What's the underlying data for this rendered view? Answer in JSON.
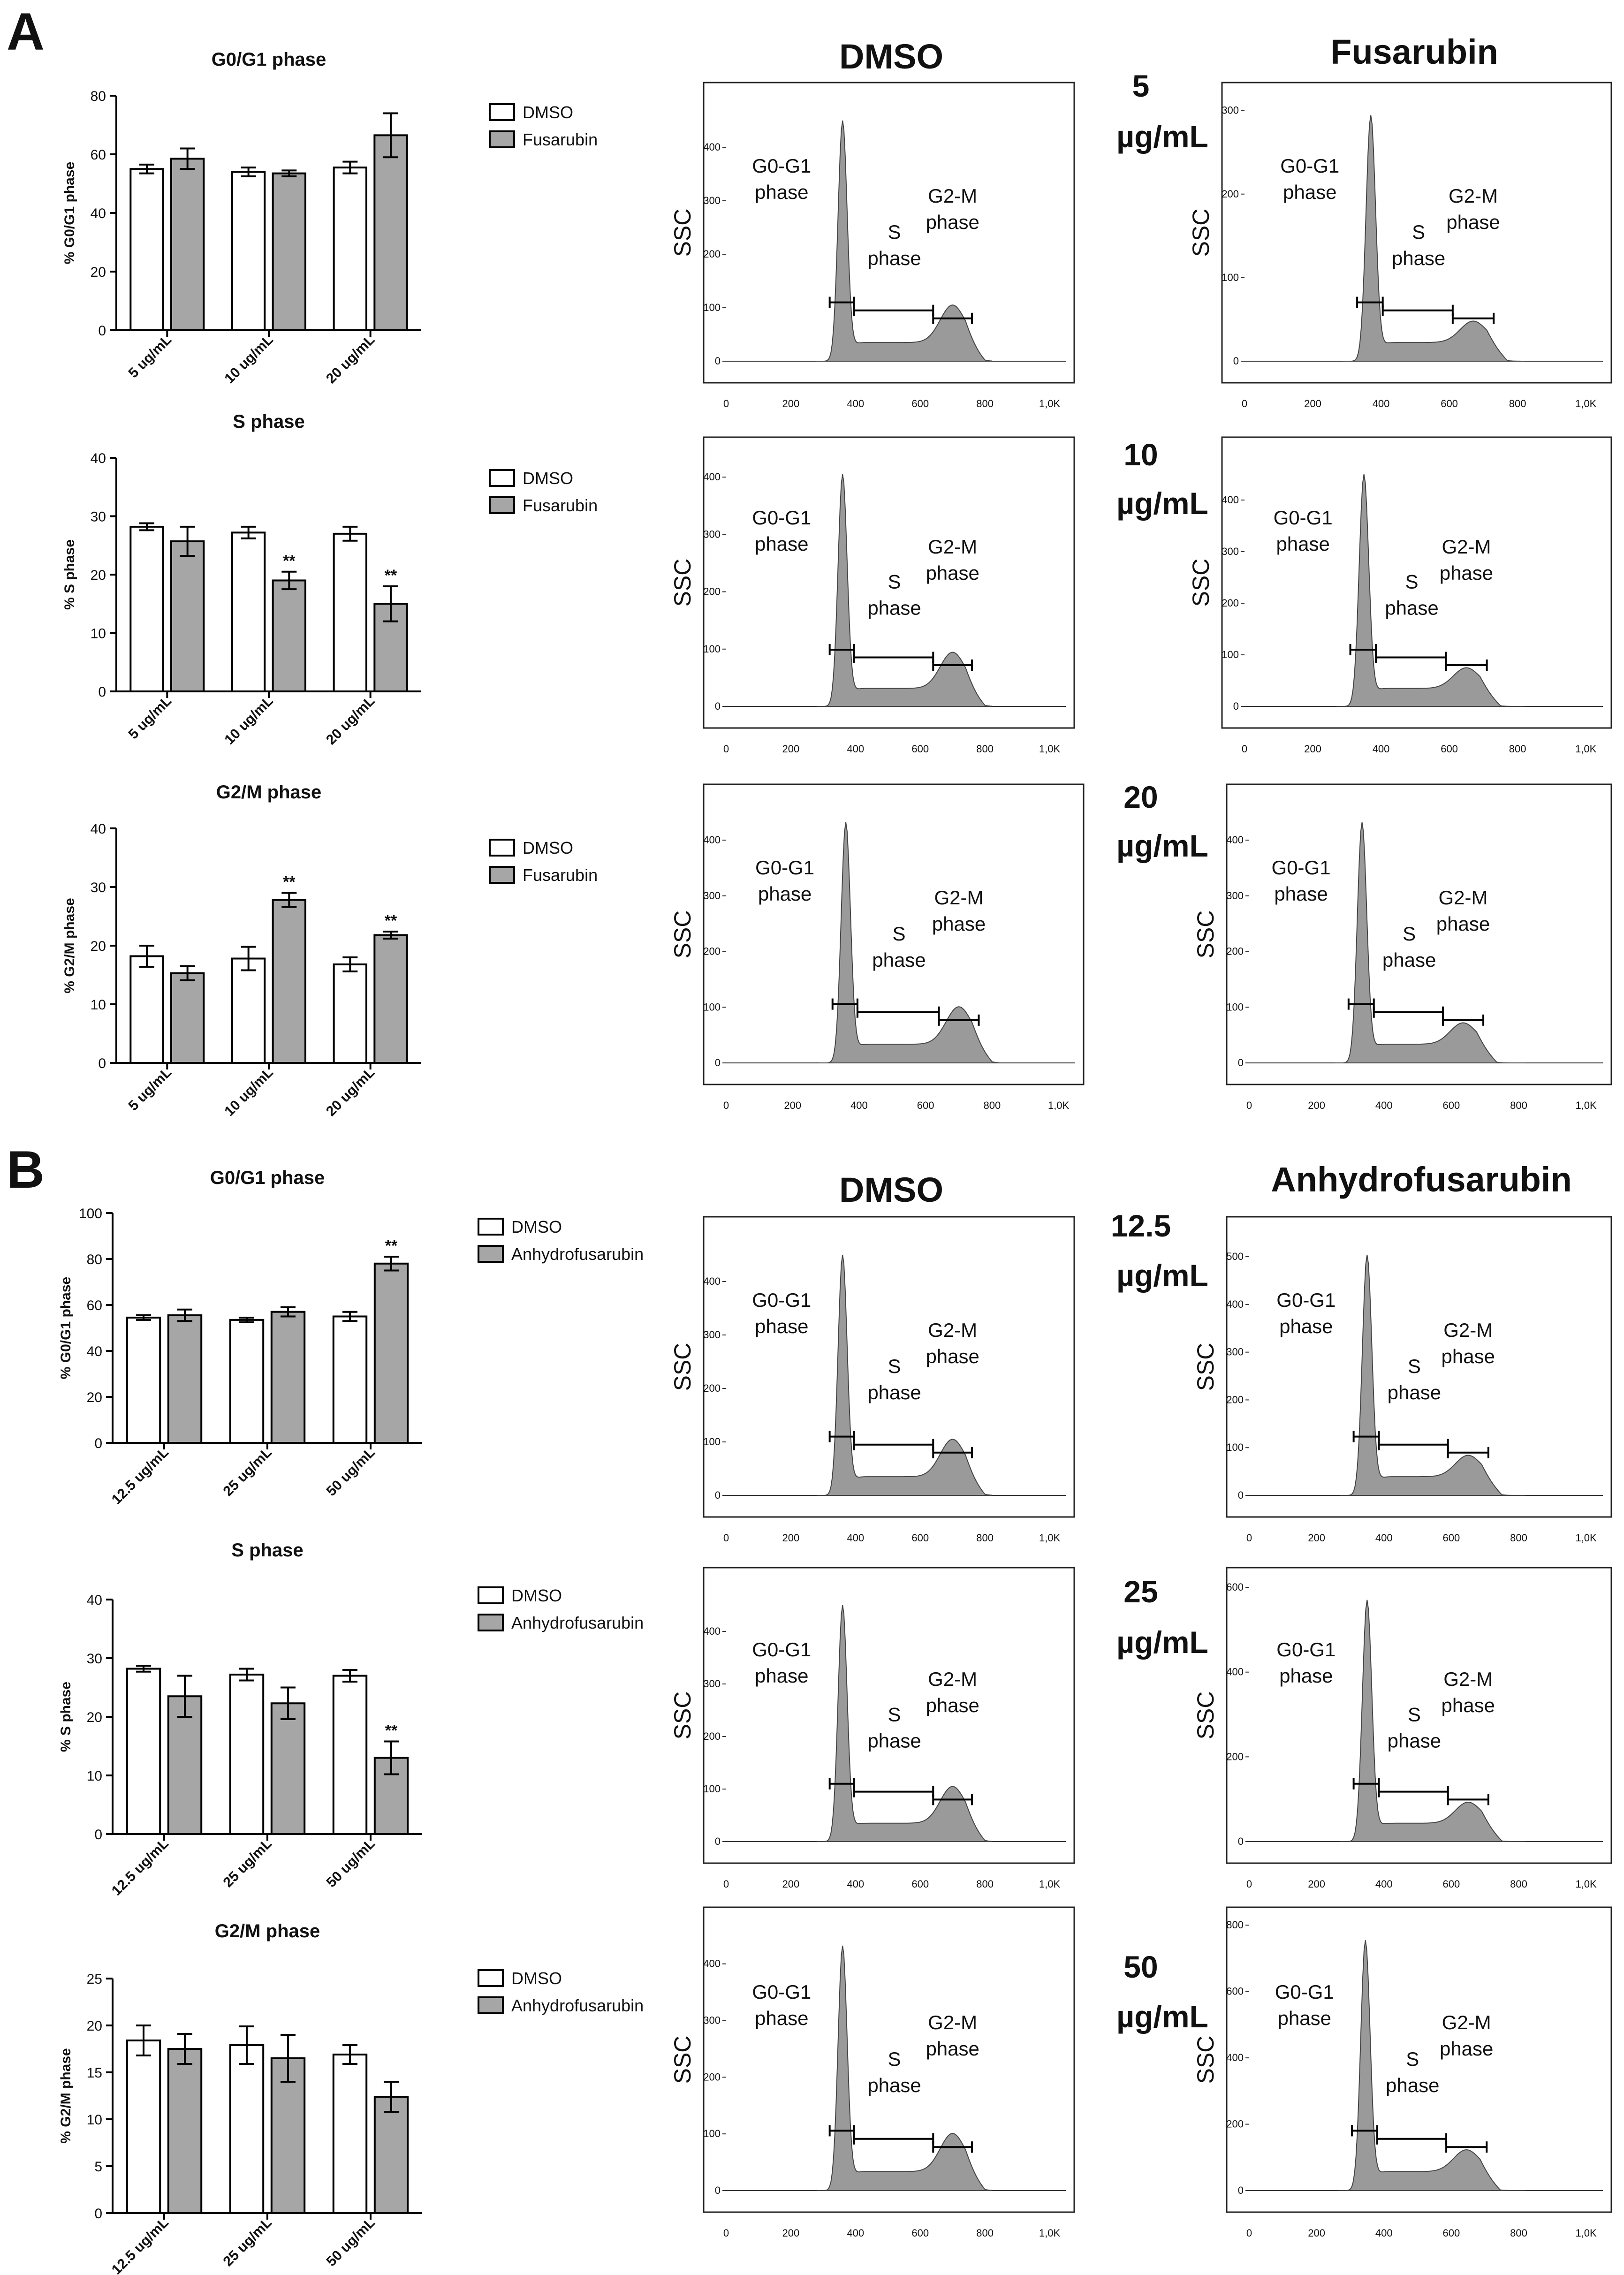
{
  "panel_labels": [
    "A",
    "B"
  ],
  "column_titles": {
    "A": {
      "control": "DMSO",
      "treatment": "Fusarubin"
    },
    "B": {
      "control": "DMSO",
      "treatment": "Anhydrofusarubin"
    }
  },
  "dose_labels": {
    "A": [
      [
        "5",
        "µg/mL"
      ],
      [
        "10",
        "µg/mL"
      ],
      [
        "20",
        "µg/mL"
      ]
    ],
    "B": [
      [
        "12.5",
        "µg/mL"
      ],
      [
        "25",
        "µg/mL"
      ],
      [
        "50",
        "µg/mL"
      ]
    ]
  },
  "histogram_annotations": {
    "y_axis_label": "SSC",
    "x_ticks": [
      "0",
      "200",
      "400",
      "600",
      "800",
      "1,0K"
    ],
    "g0g1": [
      "G0-G1",
      "phase"
    ],
    "s": [
      "S",
      "phase"
    ],
    "g2m": [
      "G2-M",
      "phase"
    ]
  },
  "chart_data": [
    {
      "type": "bar",
      "panel": "A",
      "title": "G0/G1 phase",
      "ylabel": "% G0/G1 phase",
      "ylim": [
        0,
        80
      ],
      "yticks": [
        0,
        20,
        40,
        60,
        80
      ],
      "categories": [
        "5 ug/mL",
        "10 ug/mL",
        "20 ug/mL"
      ],
      "series": [
        {
          "name": "DMSO",
          "color": "#ffffff",
          "values": [
            55,
            54,
            55.5
          ],
          "errors": [
            1.5,
            1.5,
            2
          ]
        },
        {
          "name": "Fusarubin",
          "color": "#a6a6a6",
          "values": [
            58.5,
            53.5,
            66.5
          ],
          "errors": [
            3.5,
            1,
            7.5
          ]
        }
      ],
      "significance": [
        "",
        "",
        ""
      ]
    },
    {
      "type": "bar",
      "panel": "A",
      "title": "S phase",
      "ylabel": "% S phase",
      "ylim": [
        0,
        40
      ],
      "yticks": [
        0,
        10,
        20,
        30,
        40
      ],
      "categories": [
        "5 ug/mL",
        "10 ug/mL",
        "20 ug/mL"
      ],
      "series": [
        {
          "name": "DMSO",
          "color": "#ffffff",
          "values": [
            28.2,
            27.2,
            27
          ],
          "errors": [
            0.6,
            1,
            1.2
          ]
        },
        {
          "name": "Fusarubin",
          "color": "#a6a6a6",
          "values": [
            25.7,
            19,
            15
          ],
          "errors": [
            2.5,
            1.5,
            3
          ]
        }
      ],
      "significance": [
        "",
        "**",
        "**"
      ]
    },
    {
      "type": "bar",
      "panel": "A",
      "title": "G2/M phase",
      "ylabel": "% G2/M phase",
      "ylim": [
        0,
        40
      ],
      "yticks": [
        0,
        10,
        20,
        30,
        40
      ],
      "categories": [
        "5 ug/mL",
        "10 ug/mL",
        "20 ug/mL"
      ],
      "series": [
        {
          "name": "DMSO",
          "color": "#ffffff",
          "values": [
            18.2,
            17.8,
            16.8
          ],
          "errors": [
            1.8,
            2,
            1.2
          ]
        },
        {
          "name": "Fusarubin",
          "color": "#a6a6a6",
          "values": [
            15.3,
            27.8,
            21.8
          ],
          "errors": [
            1.2,
            1.2,
            0.6
          ]
        }
      ],
      "significance": [
        "",
        "**",
        "**"
      ]
    },
    {
      "type": "bar",
      "panel": "B",
      "title": "G0/G1 phase",
      "ylabel": "% G0/G1 phase",
      "ylim": [
        0,
        100
      ],
      "yticks": [
        0,
        20,
        40,
        60,
        80,
        100
      ],
      "categories": [
        "12.5 ug/mL",
        "25 ug/mL",
        "50 ug/mL"
      ],
      "series": [
        {
          "name": "DMSO",
          "color": "#ffffff",
          "values": [
            54.5,
            53.5,
            55
          ],
          "errors": [
            1,
            1,
            2
          ]
        },
        {
          "name": "Anhydrofusarubin",
          "color": "#a6a6a6",
          "values": [
            55.5,
            57,
            78
          ],
          "errors": [
            2.5,
            2,
            3
          ]
        }
      ],
      "significance": [
        "",
        "",
        "**"
      ]
    },
    {
      "type": "bar",
      "panel": "B",
      "title": "S phase",
      "ylabel": "% S phase",
      "ylim": [
        0,
        40
      ],
      "yticks": [
        0,
        10,
        20,
        30,
        40
      ],
      "categories": [
        "12.5 ug/mL",
        "25 ug/mL",
        "50 ug/mL"
      ],
      "series": [
        {
          "name": "DMSO",
          "color": "#ffffff",
          "values": [
            28.2,
            27.2,
            27
          ],
          "errors": [
            0.5,
            1,
            1
          ]
        },
        {
          "name": "Anhydrofusarubin",
          "color": "#a6a6a6",
          "values": [
            23.5,
            22.3,
            13
          ],
          "errors": [
            3.5,
            2.7,
            2.8
          ]
        }
      ],
      "significance": [
        "",
        "",
        "**"
      ]
    },
    {
      "type": "bar",
      "panel": "B",
      "title": "G2/M phase",
      "ylabel": "% G2/M phase",
      "ylim": [
        0,
        25
      ],
      "yticks": [
        0,
        5,
        10,
        15,
        20,
        25
      ],
      "categories": [
        "12.5 ug/mL",
        "25 ug/mL",
        "50 ug/mL"
      ],
      "series": [
        {
          "name": "DMSO",
          "color": "#ffffff",
          "values": [
            18.4,
            17.9,
            16.9
          ],
          "errors": [
            1.6,
            2,
            1
          ]
        },
        {
          "name": "Anhydrofusarubin",
          "color": "#a6a6a6",
          "values": [
            17.5,
            16.5,
            12.4
          ],
          "errors": [
            1.6,
            2.5,
            1.6
          ]
        }
      ],
      "significance": [
        "",
        "",
        ""
      ]
    },
    {
      "type": "area",
      "panel": "A",
      "condition": "DMSO",
      "row": 1,
      "ymax": 500,
      "yticks": [
        0,
        100,
        200,
        300,
        400
      ],
      "peak": 360
    },
    {
      "type": "area",
      "panel": "A",
      "condition": "Fusarubin",
      "dose": "5 µg/mL",
      "row": 1,
      "ymax": 320,
      "yticks": [
        0,
        100,
        200,
        300
      ],
      "peak": 370
    },
    {
      "type": "area",
      "panel": "A",
      "condition": "DMSO",
      "row": 2,
      "ymax": 450,
      "yticks": [
        0,
        100,
        200,
        300,
        400
      ],
      "peak": 360
    },
    {
      "type": "area",
      "panel": "A",
      "condition": "Fusarubin",
      "dose": "10 µg/mL",
      "row": 2,
      "ymax": 500,
      "yticks": [
        0,
        100,
        200,
        300,
        400
      ],
      "peak": 350
    },
    {
      "type": "area",
      "panel": "A",
      "condition": "DMSO",
      "row": 3,
      "ymax": 480,
      "yticks": [
        0,
        100,
        200,
        300,
        400
      ],
      "peak": 360
    },
    {
      "type": "area",
      "panel": "A",
      "condition": "Fusarubin",
      "dose": "20 µg/mL",
      "row": 3,
      "ymax": 480,
      "yticks": [
        0,
        100,
        200,
        300,
        400
      ],
      "peak": 335
    },
    {
      "type": "area",
      "panel": "B",
      "condition": "DMSO",
      "row": 1,
      "ymax": 500,
      "yticks": [
        0,
        100,
        200,
        300,
        400
      ],
      "peak": 360
    },
    {
      "type": "area",
      "panel": "B",
      "condition": "Anhydrofusarubin",
      "dose": "12.5 µg/mL",
      "row": 1,
      "ymax": 560,
      "yticks": [
        0,
        100,
        200,
        300,
        400,
        500
      ],
      "peak": 350
    },
    {
      "type": "area",
      "panel": "B",
      "condition": "DMSO",
      "row": 2,
      "ymax": 500,
      "yticks": [
        0,
        100,
        200,
        300,
        400
      ],
      "peak": 360
    },
    {
      "type": "area",
      "panel": "B",
      "condition": "Anhydrofusarubin",
      "dose": "25 µg/mL",
      "row": 2,
      "ymax": 620,
      "yticks": [
        0,
        200,
        400,
        600
      ],
      "peak": 350
    },
    {
      "type": "area",
      "panel": "B",
      "condition": "DMSO",
      "row": 3,
      "ymax": 480,
      "yticks": [
        0,
        100,
        200,
        300,
        400
      ],
      "peak": 360
    },
    {
      "type": "area",
      "panel": "B",
      "condition": "Anhydrofusarubin",
      "dose": "50 µg/mL",
      "row": 3,
      "ymax": 820,
      "yticks": [
        0,
        200,
        400,
        600,
        800
      ],
      "peak": 345
    }
  ]
}
